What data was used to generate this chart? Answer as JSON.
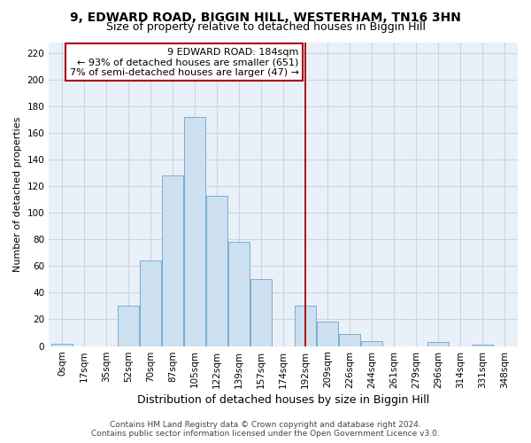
{
  "title": "9, EDWARD ROAD, BIGGIN HILL, WESTERHAM, TN16 3HN",
  "subtitle": "Size of property relative to detached houses in Biggin Hill",
  "xlabel": "Distribution of detached houses by size in Biggin Hill",
  "ylabel": "Number of detached properties",
  "footer_line1": "Contains HM Land Registry data © Crown copyright and database right 2024.",
  "footer_line2": "Contains public sector information licensed under the Open Government Licence v3.0.",
  "bar_labels": [
    "0sqm",
    "17sqm",
    "35sqm",
    "52sqm",
    "70sqm",
    "87sqm",
    "105sqm",
    "122sqm",
    "139sqm",
    "157sqm",
    "174sqm",
    "192sqm",
    "209sqm",
    "226sqm",
    "244sqm",
    "261sqm",
    "279sqm",
    "296sqm",
    "314sqm",
    "331sqm",
    "348sqm"
  ],
  "bar_heights": [
    2,
    0,
    0,
    30,
    64,
    128,
    172,
    113,
    78,
    50,
    0,
    30,
    18,
    9,
    4,
    0,
    0,
    3,
    0,
    1,
    0
  ],
  "bar_color": "#cce0f0",
  "bar_edge_color": "#7aadcf",
  "grid_color": "#c8d4e8",
  "annotation_box_text_line1": "9 EDWARD ROAD: 184sqm",
  "annotation_box_text_line2": "← 93% of detached houses are smaller (651)",
  "annotation_box_text_line3": "7% of semi-detached houses are larger (47) →",
  "vline_x_label": "192sqm",
  "vline_color": "#aa0000",
  "ylim": [
    0,
    228
  ],
  "yticks": [
    0,
    20,
    40,
    60,
    80,
    100,
    120,
    140,
    160,
    180,
    200,
    220
  ],
  "background_color": "#ffffff",
  "title_fontsize": 10,
  "subtitle_fontsize": 9,
  "xlabel_fontsize": 9,
  "ylabel_fontsize": 8,
  "tick_fontsize": 7.5,
  "annotation_fontsize": 8,
  "footer_fontsize": 6.5
}
